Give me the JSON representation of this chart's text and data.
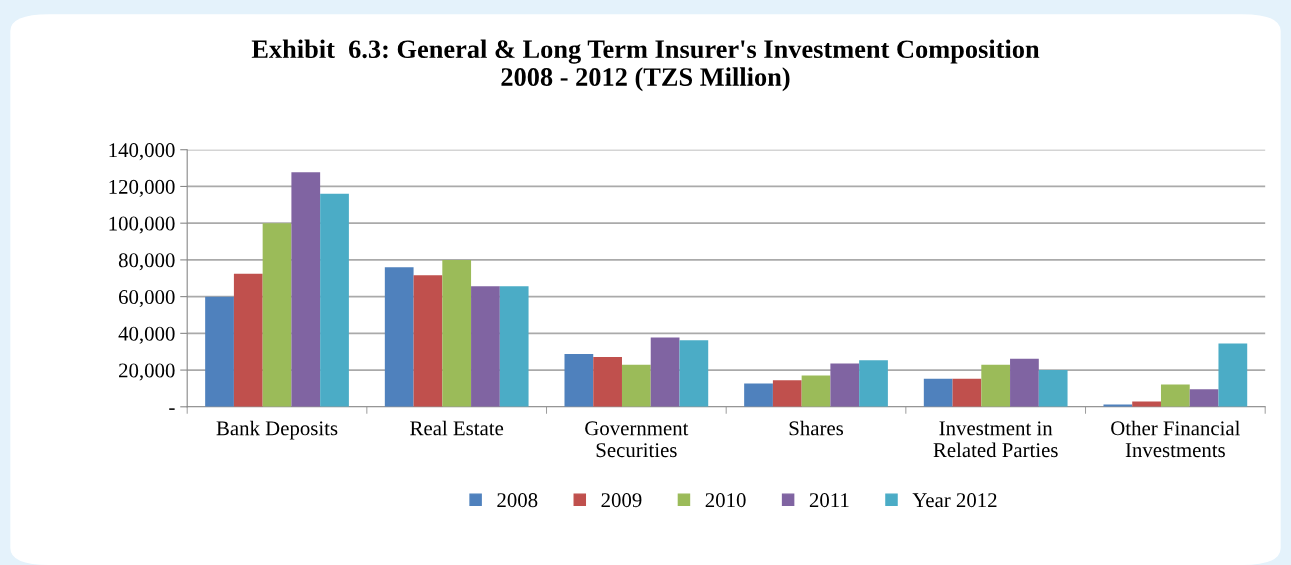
{
  "chart_data": {
    "type": "bar",
    "title": "Exhibit  6.3: General & Long Term Insurer's Investment Composition\n2008 - 2012 (TZS Million)",
    "categories": [
      "Bank Deposits",
      "Real Estate",
      "Government\nSecurities",
      "Shares",
      "Investment in\nRelated Parties",
      "Other Financial\nInvestments"
    ],
    "series": [
      {
        "name": "2008",
        "color": "#4f81bd",
        "values": [
          60000,
          76000,
          28700,
          12700,
          15300,
          1300
        ]
      },
      {
        "name": "2009",
        "color": "#c0504d",
        "values": [
          72500,
          71600,
          27100,
          14500,
          15300,
          2900
        ]
      },
      {
        "name": "2010",
        "color": "#9bbb59",
        "values": [
          100000,
          80000,
          22900,
          17100,
          22900,
          12200
        ]
      },
      {
        "name": "2011",
        "color": "#8064a2",
        "values": [
          127800,
          65600,
          37800,
          23600,
          26200,
          9500
        ]
      },
      {
        "name": "Year 2012",
        "color": "#4bacc6",
        "values": [
          116000,
          65600,
          36200,
          25300,
          20000,
          34500
        ]
      }
    ],
    "ylim": [
      0,
      140000
    ],
    "yticks": [
      {
        "value": 0,
        "label": "-"
      },
      {
        "value": 20000,
        "label": "20,000"
      },
      {
        "value": 40000,
        "label": "40,000"
      },
      {
        "value": 60000,
        "label": "60,000"
      },
      {
        "value": 80000,
        "label": "80,000"
      },
      {
        "value": 100000,
        "label": "100,000"
      },
      {
        "value": 120000,
        "label": "120,000"
      },
      {
        "value": 140000,
        "label": "140,000"
      }
    ],
    "grid": "y",
    "legend": "bottom"
  }
}
